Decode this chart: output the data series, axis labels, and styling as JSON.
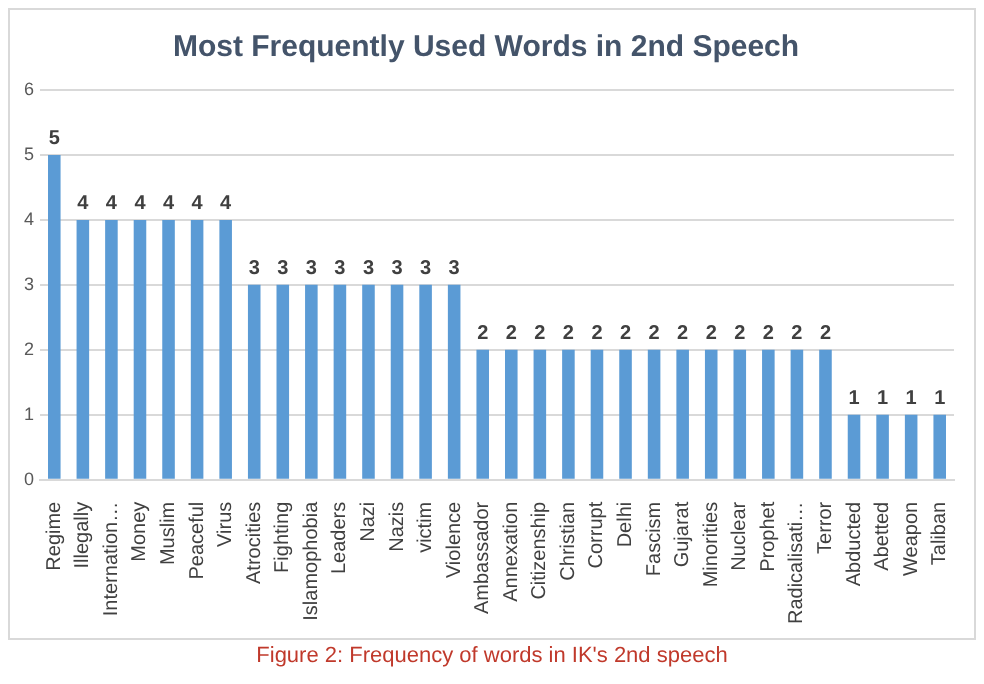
{
  "chart_data": {
    "type": "bar",
    "title": "Most Frequently Used Words in 2nd Speech",
    "categories": [
      "Regime",
      "Illegally",
      "Internation…",
      "Money",
      "Muslim",
      "Peaceful",
      "Virus",
      "Atrocities",
      "Fighting",
      "Islamophobia",
      "Leaders",
      "Nazi",
      "Nazis",
      "victim",
      "Violence",
      "Ambassador",
      "Annexation",
      "Citizenship",
      "Christian",
      "Corrupt",
      "Delhi",
      "Fascism",
      "Gujarat",
      "Minorities",
      "Nuclear",
      "Prophet",
      "Radicalisati…",
      "Terror",
      "Abducted",
      "Abetted",
      "Weapon",
      "Taliban"
    ],
    "values": [
      5,
      4,
      4,
      4,
      4,
      4,
      4,
      3,
      3,
      3,
      3,
      3,
      3,
      3,
      3,
      2,
      2,
      2,
      2,
      2,
      2,
      2,
      2,
      2,
      2,
      2,
      2,
      2,
      1,
      1,
      1,
      1
    ],
    "color": "#5b9bd5",
    "ylim": [
      0,
      6
    ],
    "yticks": [
      0,
      1,
      2,
      3,
      4,
      5,
      6
    ],
    "grid": "y",
    "data_labels": true,
    "annotations": [
      "Figure 2:  Frequency of words in IK's 2nd speech"
    ]
  }
}
